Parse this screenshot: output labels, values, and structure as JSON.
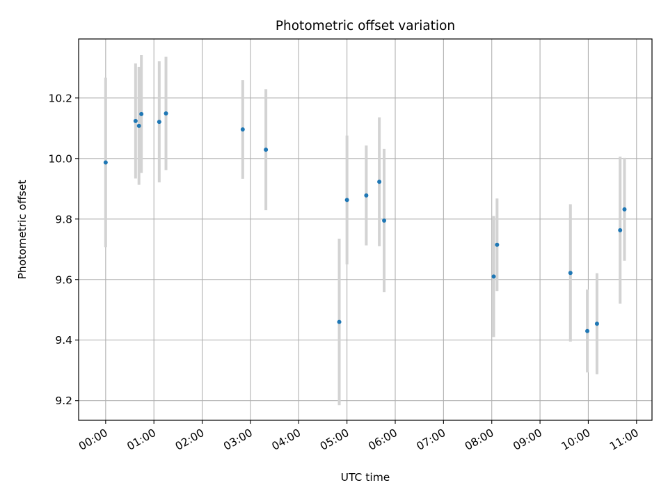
{
  "chart_data": {
    "type": "scatter",
    "title": "Photometric offset variation",
    "xlabel": "UTC time",
    "ylabel": "Photometric offset",
    "x_unit": "hours UTC",
    "xlim": [
      -0.56,
      11.32
    ],
    "ylim": [
      9.135,
      10.395
    ],
    "grid": true,
    "x_ticks": [
      0,
      1,
      2,
      3,
      4,
      5,
      6,
      7,
      8,
      9,
      10,
      11
    ],
    "x_tick_labels": [
      "00:00",
      "01:00",
      "02:00",
      "03:00",
      "04:00",
      "05:00",
      "06:00",
      "07:00",
      "08:00",
      "09:00",
      "10:00",
      "11:00"
    ],
    "y_ticks": [
      9.2,
      9.4,
      9.6,
      9.8,
      10.0,
      10.2
    ],
    "y_tick_labels": [
      "9.2",
      "9.4",
      "9.6",
      "9.8",
      "10.0",
      "10.2"
    ],
    "colors": {
      "marker": "#1f77b4",
      "errorbar": "#d3d3d3",
      "grid": "#b0b0b0",
      "spine": "#000000"
    },
    "points": [
      {
        "time": "00:00",
        "x": 0.0,
        "y": 9.987,
        "err": 0.28
      },
      {
        "time": "00:37",
        "x": 0.62,
        "y": 10.124,
        "err": 0.19
      },
      {
        "time": "00:41",
        "x": 0.69,
        "y": 10.108,
        "err": 0.195
      },
      {
        "time": "00:44",
        "x": 0.74,
        "y": 10.147,
        "err": 0.195
      },
      {
        "time": "01:07",
        "x": 1.11,
        "y": 10.121,
        "err": 0.2
      },
      {
        "time": "01:15",
        "x": 1.25,
        "y": 10.149,
        "err": 0.187
      },
      {
        "time": "02:50",
        "x": 2.84,
        "y": 10.096,
        "err": 0.163
      },
      {
        "time": "03:19",
        "x": 3.32,
        "y": 10.029,
        "err": 0.2
      },
      {
        "time": "04:50",
        "x": 4.84,
        "y": 9.46,
        "err": 0.275
      },
      {
        "time": "05:00",
        "x": 5.0,
        "y": 9.863,
        "err": 0.213
      },
      {
        "time": "05:24",
        "x": 5.4,
        "y": 9.878,
        "err": 0.165
      },
      {
        "time": "05:40",
        "x": 5.67,
        "y": 9.923,
        "err": 0.213
      },
      {
        "time": "05:46",
        "x": 5.77,
        "y": 9.795,
        "err": 0.237
      },
      {
        "time": "08:03",
        "x": 8.04,
        "y": 9.61,
        "err": 0.2
      },
      {
        "time": "08:07",
        "x": 8.11,
        "y": 9.715,
        "err": 0.153
      },
      {
        "time": "09:38",
        "x": 9.63,
        "y": 9.622,
        "err": 0.227
      },
      {
        "time": "09:59",
        "x": 9.98,
        "y": 9.43,
        "err": 0.137
      },
      {
        "time": "10:11",
        "x": 10.18,
        "y": 9.454,
        "err": 0.167
      },
      {
        "time": "10:40",
        "x": 10.66,
        "y": 9.763,
        "err": 0.243
      },
      {
        "time": "10:45",
        "x": 10.75,
        "y": 9.832,
        "err": 0.17
      }
    ]
  }
}
